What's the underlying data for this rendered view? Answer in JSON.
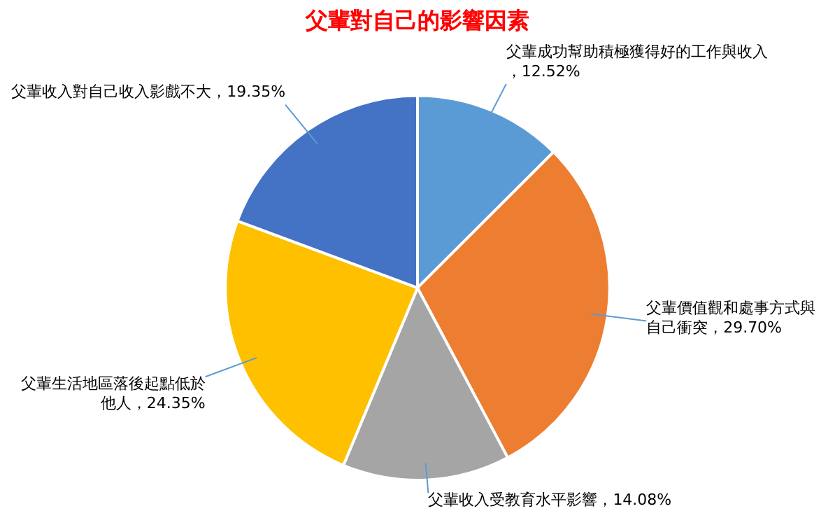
{
  "chart_data": {
    "type": "pie",
    "title": "父輩對自己的影響因素",
    "categories": [
      "父輩成功幫助積極獲得好的工作與收入",
      "父輩價值觀和處事方式與自己衝突",
      "父輩收入受教育水平影響",
      "父輩生活地區落後起點低於他人",
      "父輩收入對自己收入影戲不大"
    ],
    "values": [
      12.52,
      29.7,
      14.08,
      24.35,
      19.35
    ],
    "value_labels": [
      "，12.52%",
      "，29.70%",
      "，14.08%",
      "，24.35%",
      "，19.35%"
    ],
    "colors": [
      "#5b9bd5",
      "#ed7d31",
      "#a5a5a5",
      "#ffc000",
      "#4472c4"
    ],
    "legend": false
  }
}
